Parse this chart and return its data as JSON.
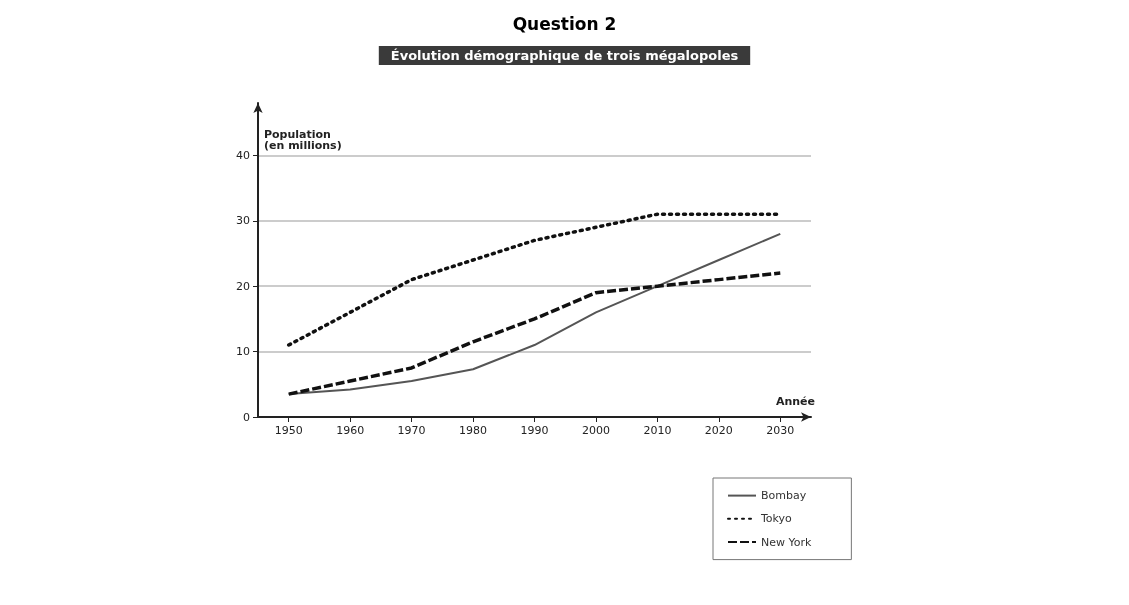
{
  "chart_data": {
    "type": "line",
    "title": "Question 2",
    "subtitle": "Évolution démographique de trois mégalopoles",
    "xlabel": "Année",
    "ylabel": "Population\n(en millions)",
    "categories": [
      "1950",
      "1960",
      "1970",
      "1980",
      "1990",
      "2000",
      "2010",
      "2020",
      "2030"
    ],
    "series": [
      {
        "name": "Bombay",
        "color": "#555555",
        "line_style": "solid",
        "values": [
          3.5,
          4.2,
          5.5,
          7.3,
          11,
          16,
          20,
          24,
          28
        ]
      },
      {
        "name": "Tokyo",
        "color": "#111111",
        "line_style": "dotted",
        "values": [
          11,
          16,
          21,
          24,
          27,
          29,
          31,
          31,
          31
        ]
      },
      {
        "name": "New York",
        "color": "#111111",
        "line_style": "dashed",
        "values": [
          3.5,
          5.5,
          7.5,
          11.5,
          15,
          19,
          20,
          21,
          22
        ]
      }
    ],
    "ylim": [
      0,
      48
    ],
    "yticks": [
      0,
      10,
      20,
      30,
      40
    ],
    "grid": "y",
    "legend": "bottom right",
    "marker": "none"
  }
}
